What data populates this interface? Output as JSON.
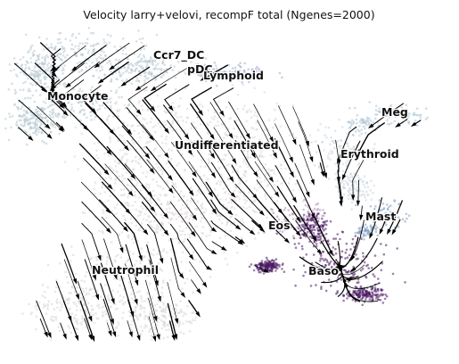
{
  "chart_data": {
    "type": "scatter",
    "title": "Velocity larry+velovi, recompF total (Ngenes=2000)",
    "xlabel": "",
    "ylabel": "",
    "grid": false,
    "legend": "on data",
    "overlay": "velocity streamlines",
    "clusters": [
      {
        "name": "Ccr7_DC",
        "color": "#b8c9d4"
      },
      {
        "name": "pDC",
        "color": "#b7c3d2"
      },
      {
        "name": "Lymphoid",
        "color": "#9fa9cf"
      },
      {
        "name": "Monocyte",
        "color": "#b4c8cf"
      },
      {
        "name": "Meg",
        "color": "#a9c2d6"
      },
      {
        "name": "Undifferentiated",
        "color": "#dcd3da"
      },
      {
        "name": "Erythroid",
        "color": "#c9d3dc"
      },
      {
        "name": "Mast",
        "color": "#7f9fc0"
      },
      {
        "name": "Eos",
        "color": "#b18fb5"
      },
      {
        "name": "Baso",
        "color": "#4b1a63"
      },
      {
        "name": "Neutrophil",
        "color": "#d6d6d8"
      }
    ]
  }
}
